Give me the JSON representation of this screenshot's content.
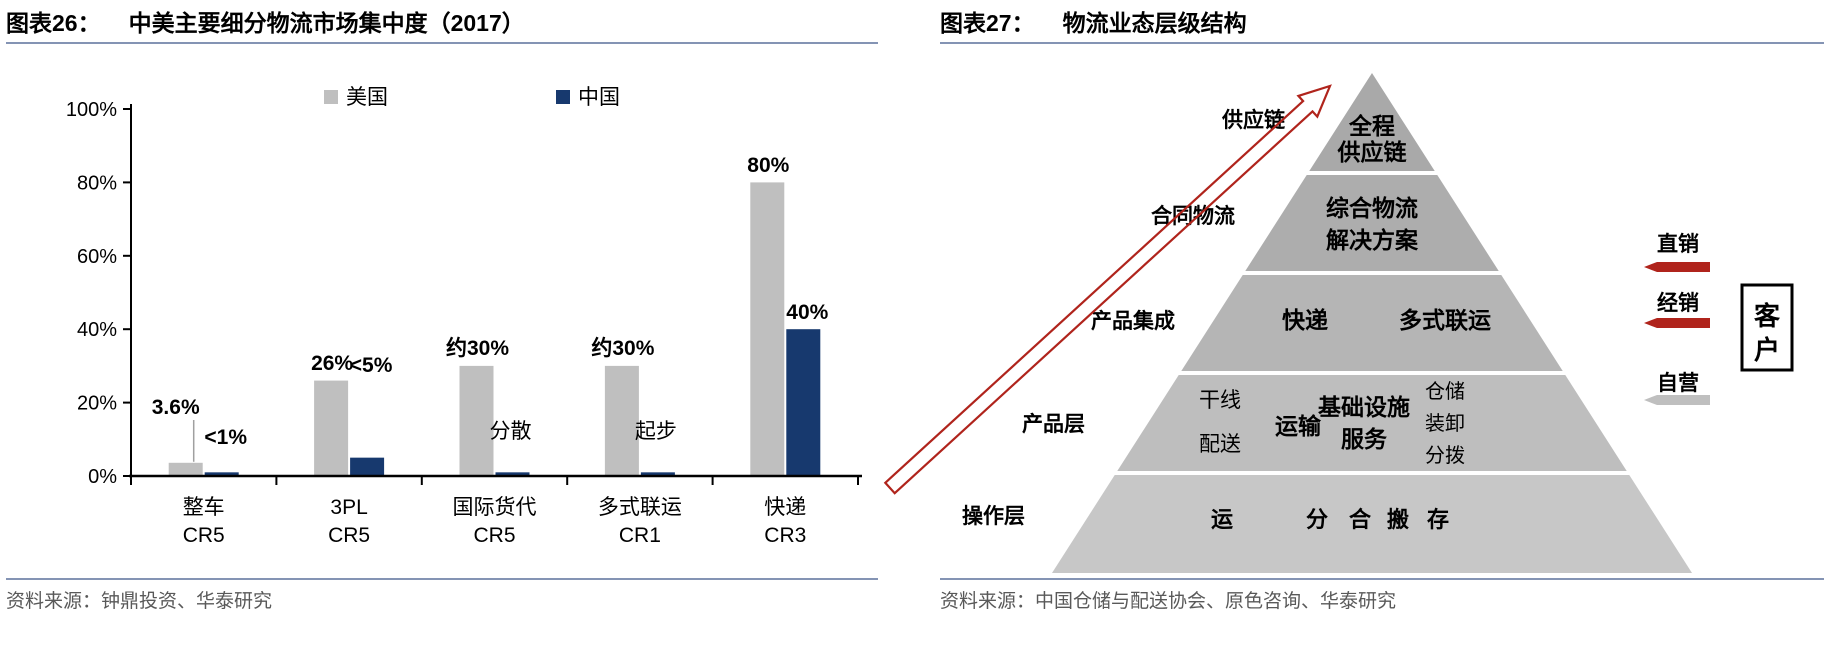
{
  "charts": {
    "left": {
      "tag": "图表26：",
      "title": "中美主要细分物流市场集中度（2017）",
      "source": "资料来源：钟鼎投资、华泰研究"
    },
    "right": {
      "tag": "图表27：",
      "title": "物流业态层级结构",
      "source": "资料来源：中国仓储与配送协会、原色咨询、华泰研究"
    }
  },
  "colors": {
    "us_gray": "#bfbfbf",
    "cn_navy": "#17396e",
    "accent_red": "#b0241c",
    "rule_blue": "#8494b4",
    "source_gray": "#595959"
  },
  "chart_data": [
    {
      "type": "bar",
      "title": "中美主要细分物流市场集中度（2017）",
      "categories": [
        "整车\nCR5",
        "3PL\nCR5",
        "国际货代\nCR5",
        "多式联运\nCR1",
        "快递\nCR3"
      ],
      "series": [
        {
          "name": "美国",
          "color": "#bfbfbf",
          "values": [
            3.6,
            26,
            30,
            30,
            80
          ],
          "labels": [
            "3.6%",
            "26%",
            "约30%",
            "约30%",
            "80%"
          ]
        },
        {
          "name": "中国",
          "color": "#17396e",
          "values": [
            1,
            5,
            1,
            1,
            40
          ],
          "labels": [
            "<1%",
            "<5%",
            "分散",
            "起步",
            "40%"
          ]
        }
      ],
      "xlabel": "",
      "ylabel": "",
      "ylim": [
        0,
        100
      ],
      "yticks": [
        "0%",
        "20%",
        "40%",
        "60%",
        "80%",
        "100%"
      ],
      "legend_position": "top",
      "grid": false
    },
    {
      "type": "pyramid",
      "title": "物流业态层级结构",
      "levels": [
        {
          "side_label": "供应链",
          "items": [
            "全程\n供应链"
          ]
        },
        {
          "side_label": "合同物流",
          "items": [
            "综合物流\n解决方案"
          ]
        },
        {
          "side_label": "产品集成",
          "items": [
            "快递",
            "多式联运"
          ]
        },
        {
          "side_label": "产品层",
          "items": [
            "干线\n配送",
            "运输",
            "基础设施\n服务",
            "仓储\n装卸\n分拨"
          ]
        },
        {
          "side_label": "操作层",
          "items": [
            "运",
            "分",
            "合",
            "搬",
            "存"
          ]
        }
      ],
      "level_colors": [
        "#a9a9a9",
        "#adadad",
        "#b5b5b5",
        "#bebebe",
        "#c7c7c7"
      ],
      "ascending_arrow_color": "#b0241c",
      "right_annotations": [
        {
          "label": "直销",
          "arrow_color": "#b0241c"
        },
        {
          "label": "经销",
          "arrow_color": "#b0241c"
        },
        {
          "label": "自营",
          "arrow_color": "#bfbfbf"
        }
      ],
      "client_box": "客户"
    }
  ]
}
